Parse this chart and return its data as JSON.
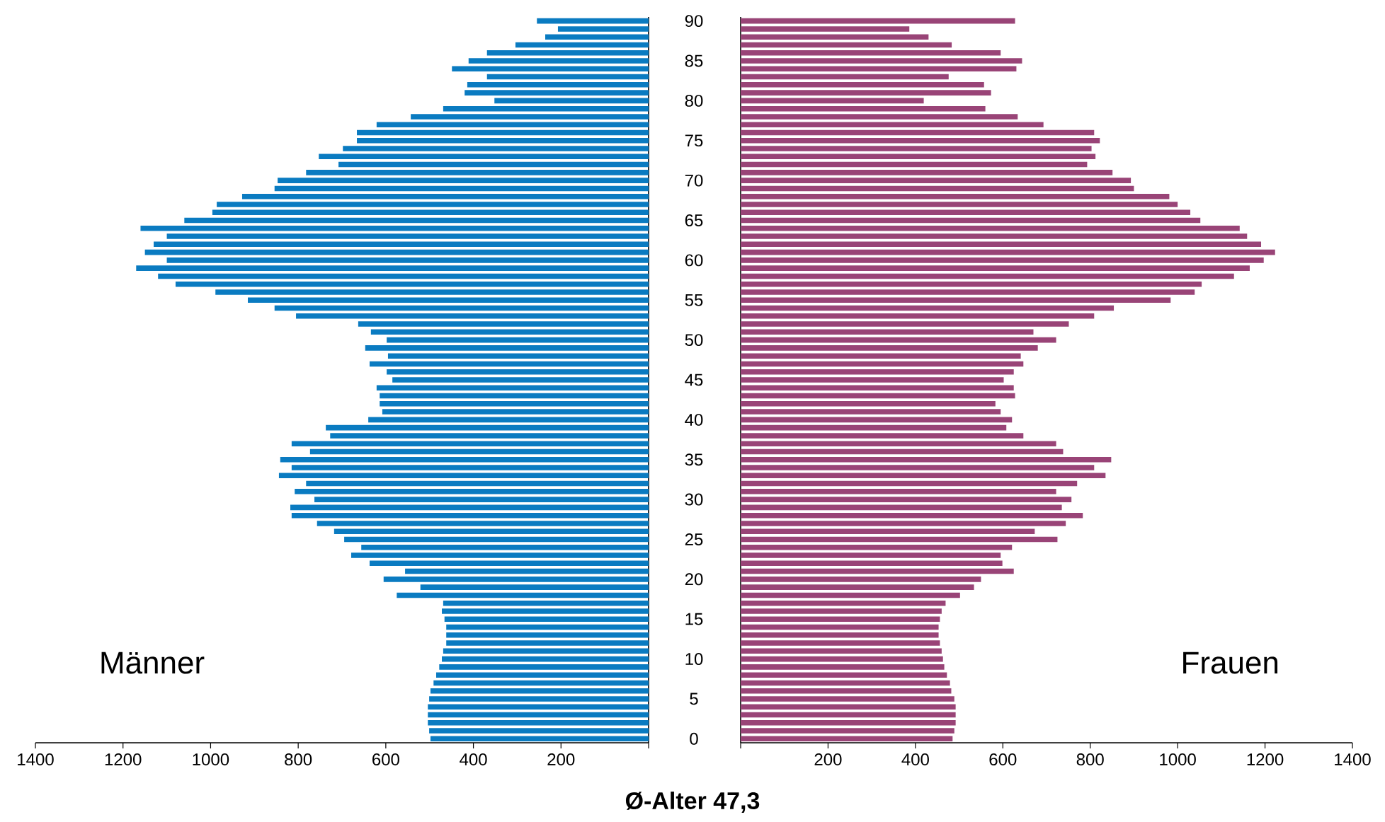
{
  "chart_data": [
    {
      "type": "bar",
      "orientation": "horizontal",
      "tick_labels": "x",
      "categories": [
        "90",
        null,
        null,
        null,
        null,
        "85",
        null,
        null,
        null,
        null,
        "80",
        null,
        null,
        null,
        null,
        "75",
        null,
        null,
        null,
        null,
        "70",
        null,
        null,
        null,
        null,
        "65",
        null,
        null,
        null,
        null,
        "60",
        null,
        null,
        null,
        null,
        "55",
        null,
        null,
        null,
        null,
        "50",
        null,
        null,
        null,
        null,
        "45",
        null,
        null,
        null,
        null,
        "40",
        null,
        null,
        null,
        null,
        "35",
        null,
        null,
        null,
        null,
        "30",
        null,
        null,
        null,
        null,
        "25",
        null,
        null,
        null,
        null,
        "20",
        null,
        null,
        null,
        null,
        "15",
        null,
        null,
        null,
        null,
        "10",
        null,
        null,
        null,
        null,
        "5",
        null,
        null,
        null,
        null,
        "0"
      ],
      "series": [
        {
          "name": "Männer",
          "color": "#0a7bc1",
          "values": [
            255,
            207,
            236,
            304,
            369,
            411,
            449,
            369,
            414,
            420,
            352,
            469,
            543,
            621,
            666,
            666,
            698,
            753,
            708,
            782,
            847,
            854,
            928,
            986,
            996,
            1060,
            1160,
            1100,
            1130,
            1150,
            1100,
            1170,
            1120,
            1080,
            989,
            915,
            854,
            805,
            663,
            634,
            598,
            647,
            595,
            637,
            598,
            585,
            621,
            614,
            614,
            608,
            640,
            737,
            727,
            815,
            773,
            841,
            815,
            844,
            782,
            808,
            763,
            818,
            815,
            757,
            718,
            695,
            656,
            679,
            637,
            556,
            605,
            521,
            575,
            469,
            472,
            466,
            462,
            462,
            462,
            469,
            472,
            478,
            485,
            491,
            498,
            501,
            504,
            504,
            504,
            501,
            498
          ]
        }
      ],
      "xlim": [
        1400,
        0
      ],
      "xticks": [
        1400,
        1200,
        1000,
        800,
        600,
        400,
        200,
        {
          "value": 0,
          "label": null
        }
      ],
      "annotations": [
        "Ø-Alter 47,3"
      ]
    },
    {
      "type": "bar",
      "orientation": "horizontal",
      "categories": [
        "90",
        null,
        null,
        null,
        null,
        "85",
        null,
        null,
        null,
        null,
        "80",
        null,
        null,
        null,
        null,
        "75",
        null,
        null,
        null,
        null,
        "70",
        null,
        null,
        null,
        null,
        "65",
        null,
        null,
        null,
        null,
        "60",
        null,
        null,
        null,
        null,
        "55",
        null,
        null,
        null,
        null,
        "50",
        null,
        null,
        null,
        null,
        "45",
        null,
        null,
        null,
        null,
        "40",
        null,
        null,
        null,
        null,
        "35",
        null,
        null,
        null,
        null,
        "30",
        null,
        null,
        null,
        null,
        "25",
        null,
        null,
        null,
        null,
        "20",
        null,
        null,
        null,
        null,
        "15",
        null,
        null,
        null,
        null,
        "10",
        null,
        null,
        null,
        null,
        "5",
        null,
        null,
        null,
        null,
        "0"
      ],
      "series": [
        {
          "name": "Frauen",
          "color": "#994477",
          "values": [
            628,
            386,
            430,
            483,
            595,
            644,
            631,
            476,
            557,
            573,
            419,
            560,
            634,
            693,
            809,
            822,
            803,
            812,
            793,
            851,
            893,
            900,
            981,
            1000,
            1029,
            1052,
            1142,
            1159,
            1191,
            1223,
            1197,
            1165,
            1129,
            1055,
            1039,
            984,
            854,
            809,
            751,
            670,
            722,
            680,
            641,
            647,
            625,
            602,
            625,
            628,
            583,
            595,
            621,
            608,
            647,
            722,
            738,
            848,
            809,
            835,
            770,
            722,
            757,
            735,
            783,
            744,
            673,
            725,
            621,
            595,
            599,
            625,
            550,
            534,
            502,
            469,
            460,
            456,
            453,
            453,
            456,
            460,
            463,
            466,
            472,
            479,
            482,
            489,
            492,
            492,
            492,
            489,
            485
          ]
        }
      ],
      "xlim": [
        0,
        1400
      ],
      "xticks": [
        {
          "value": 0,
          "label": null
        },
        200,
        400,
        600,
        800,
        1000,
        1200,
        1400
      ]
    }
  ]
}
